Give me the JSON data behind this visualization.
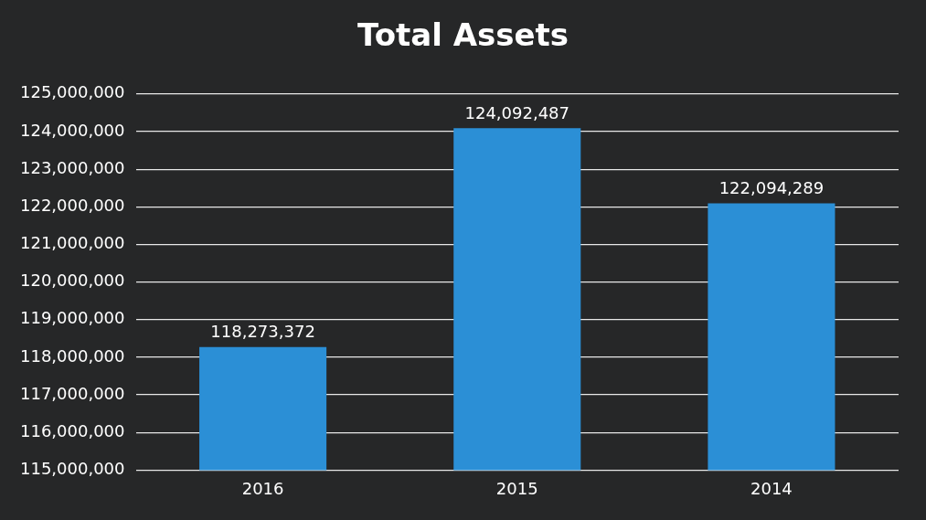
{
  "chart_data": {
    "type": "bar",
    "title": "Total Assets",
    "categories": [
      "2016",
      "2015",
      "2014"
    ],
    "values": [
      118273372,
      124092487,
      122094289
    ],
    "color": "#2b8fd6",
    "ylim": [
      115000000,
      125000000
    ],
    "yticks": [
      {
        "value": 115000000,
        "label": "115,000,000"
      },
      {
        "value": 116000000,
        "label": "116,000,000"
      },
      {
        "value": 117000000,
        "label": "117,000,000"
      },
      {
        "value": 118000000,
        "label": "118,000,000"
      },
      {
        "value": 119000000,
        "label": "119,000,000"
      },
      {
        "value": 120000000,
        "label": "120,000,000"
      },
      {
        "value": 121000000,
        "label": "121,000,000"
      },
      {
        "value": 122000000,
        "label": "122,000,000"
      },
      {
        "value": 123000000,
        "label": "123,000,000"
      },
      {
        "value": 124000000,
        "label": "124,000,000"
      },
      {
        "value": 125000000,
        "label": "125,000,000"
      }
    ],
    "grid": "y",
    "data_labels": true,
    "value_labels": [
      "118,273,372",
      "124,092,487",
      "122,094,289"
    ]
  }
}
